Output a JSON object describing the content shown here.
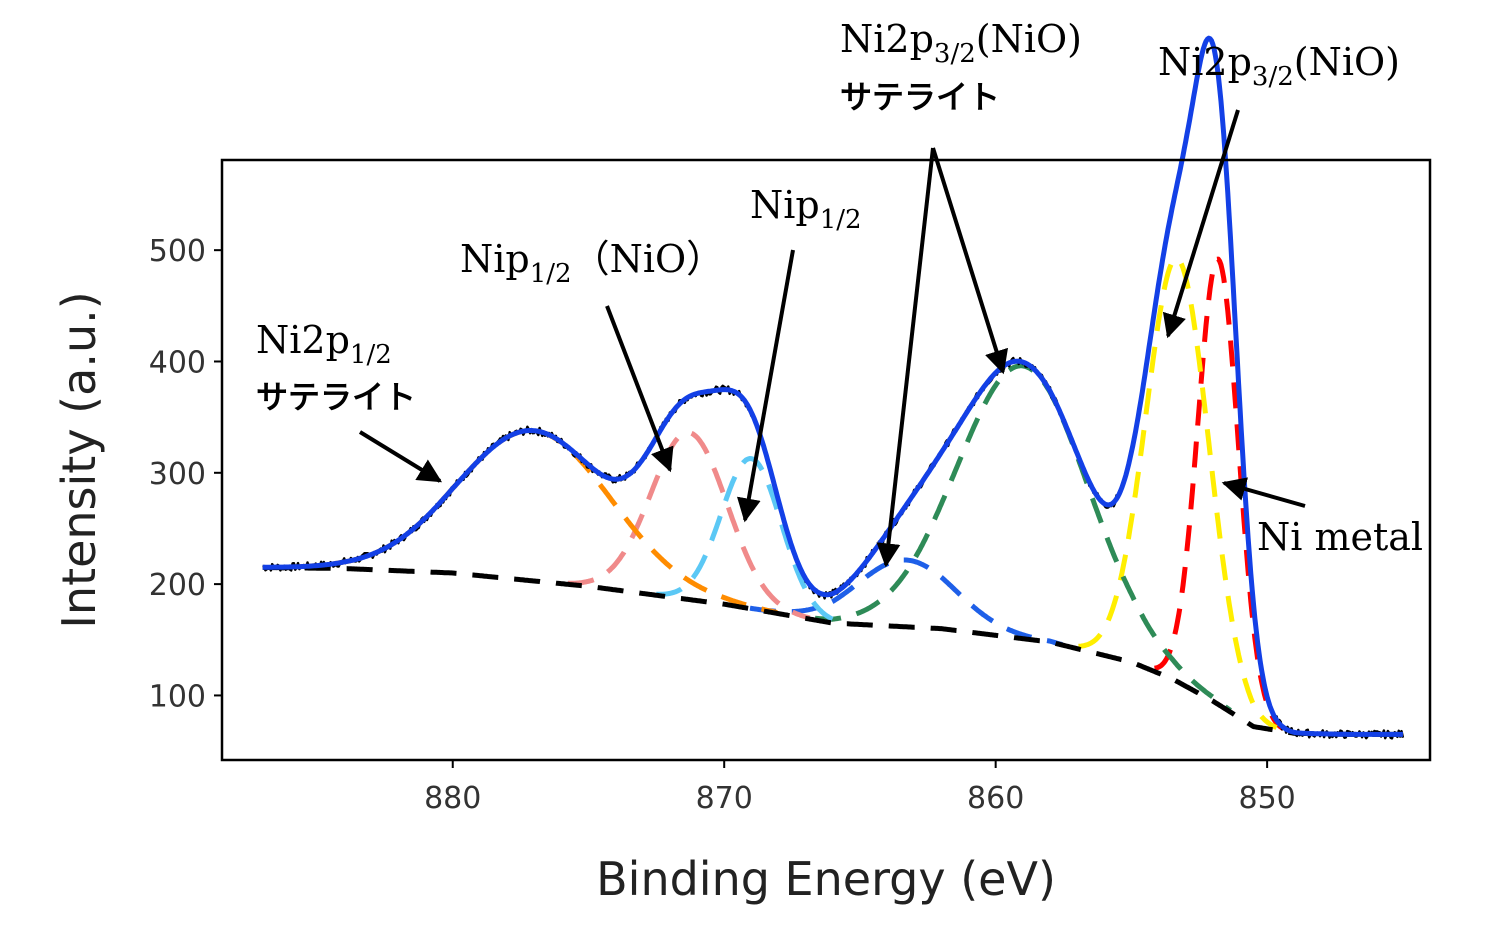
{
  "chart_data": {
    "type": "line",
    "title": "",
    "xlabel": "Binding Energy (eV)",
    "ylabel": "Intensity (a.u.)",
    "xlim": [
      888.5,
      844
    ],
    "ylim": [
      42,
      581
    ],
    "x_reversed": true,
    "xticks": [
      880,
      870,
      860,
      850
    ],
    "yticks": [
      100,
      200,
      300,
      400,
      500
    ],
    "grid": false,
    "legend": "none",
    "peaks": [
      {
        "center": 851.8,
        "amplitude": 400,
        "width": 0.75,
        "color": "#ff0000"
      },
      {
        "center": 853.3,
        "amplitude": 380,
        "width": 1.15,
        "color": "#ffee00"
      },
      {
        "center": 859.0,
        "amplitude": 245,
        "width": 2.4,
        "color": "#2e8b57"
      },
      {
        "center": 863.3,
        "amplitude": 60,
        "width": 1.8,
        "color": "#1e5fe8"
      },
      {
        "center": 869.0,
        "amplitude": 135,
        "width": 1.1,
        "color": "#5bc8f5"
      },
      {
        "center": 871.3,
        "amplitude": 150,
        "width": 1.4,
        "color": "#f08a8a"
      },
      {
        "center": 877.0,
        "amplitude": 135,
        "width": 2.8,
        "color": "#ff8c00"
      }
    ],
    "background": {
      "x": [
        887,
        884,
        880,
        875,
        870,
        866,
        862,
        858,
        855,
        853.5,
        852,
        850.5,
        849,
        847,
        845
      ],
      "y": [
        215,
        214,
        210,
        198,
        182,
        165,
        160,
        148,
        130,
        115,
        95,
        72,
        66,
        65,
        65
      ],
      "color": "#000000"
    },
    "envelope_color": "#1340e6",
    "raw_color": "#000000",
    "annotations": [
      {
        "main": "Ni2p",
        "sub": "1/2",
        "rest": "",
        "line2": "サテライト"
      },
      {
        "main": "Nip",
        "sub": "1/2",
        "rest": "（NiO）",
        "line2": ""
      },
      {
        "main": "Nip",
        "sub": "1/2",
        "rest": "",
        "line2": ""
      },
      {
        "main": "Ni2p",
        "sub": "3/2",
        "rest": "(NiO)",
        "line2": "サテライト"
      },
      {
        "main": "Ni2p",
        "sub": "3/2",
        "rest": "(NiO)",
        "line2": ""
      },
      {
        "main": "Ni metal",
        "sub": "",
        "rest": "",
        "line2": ""
      }
    ]
  }
}
